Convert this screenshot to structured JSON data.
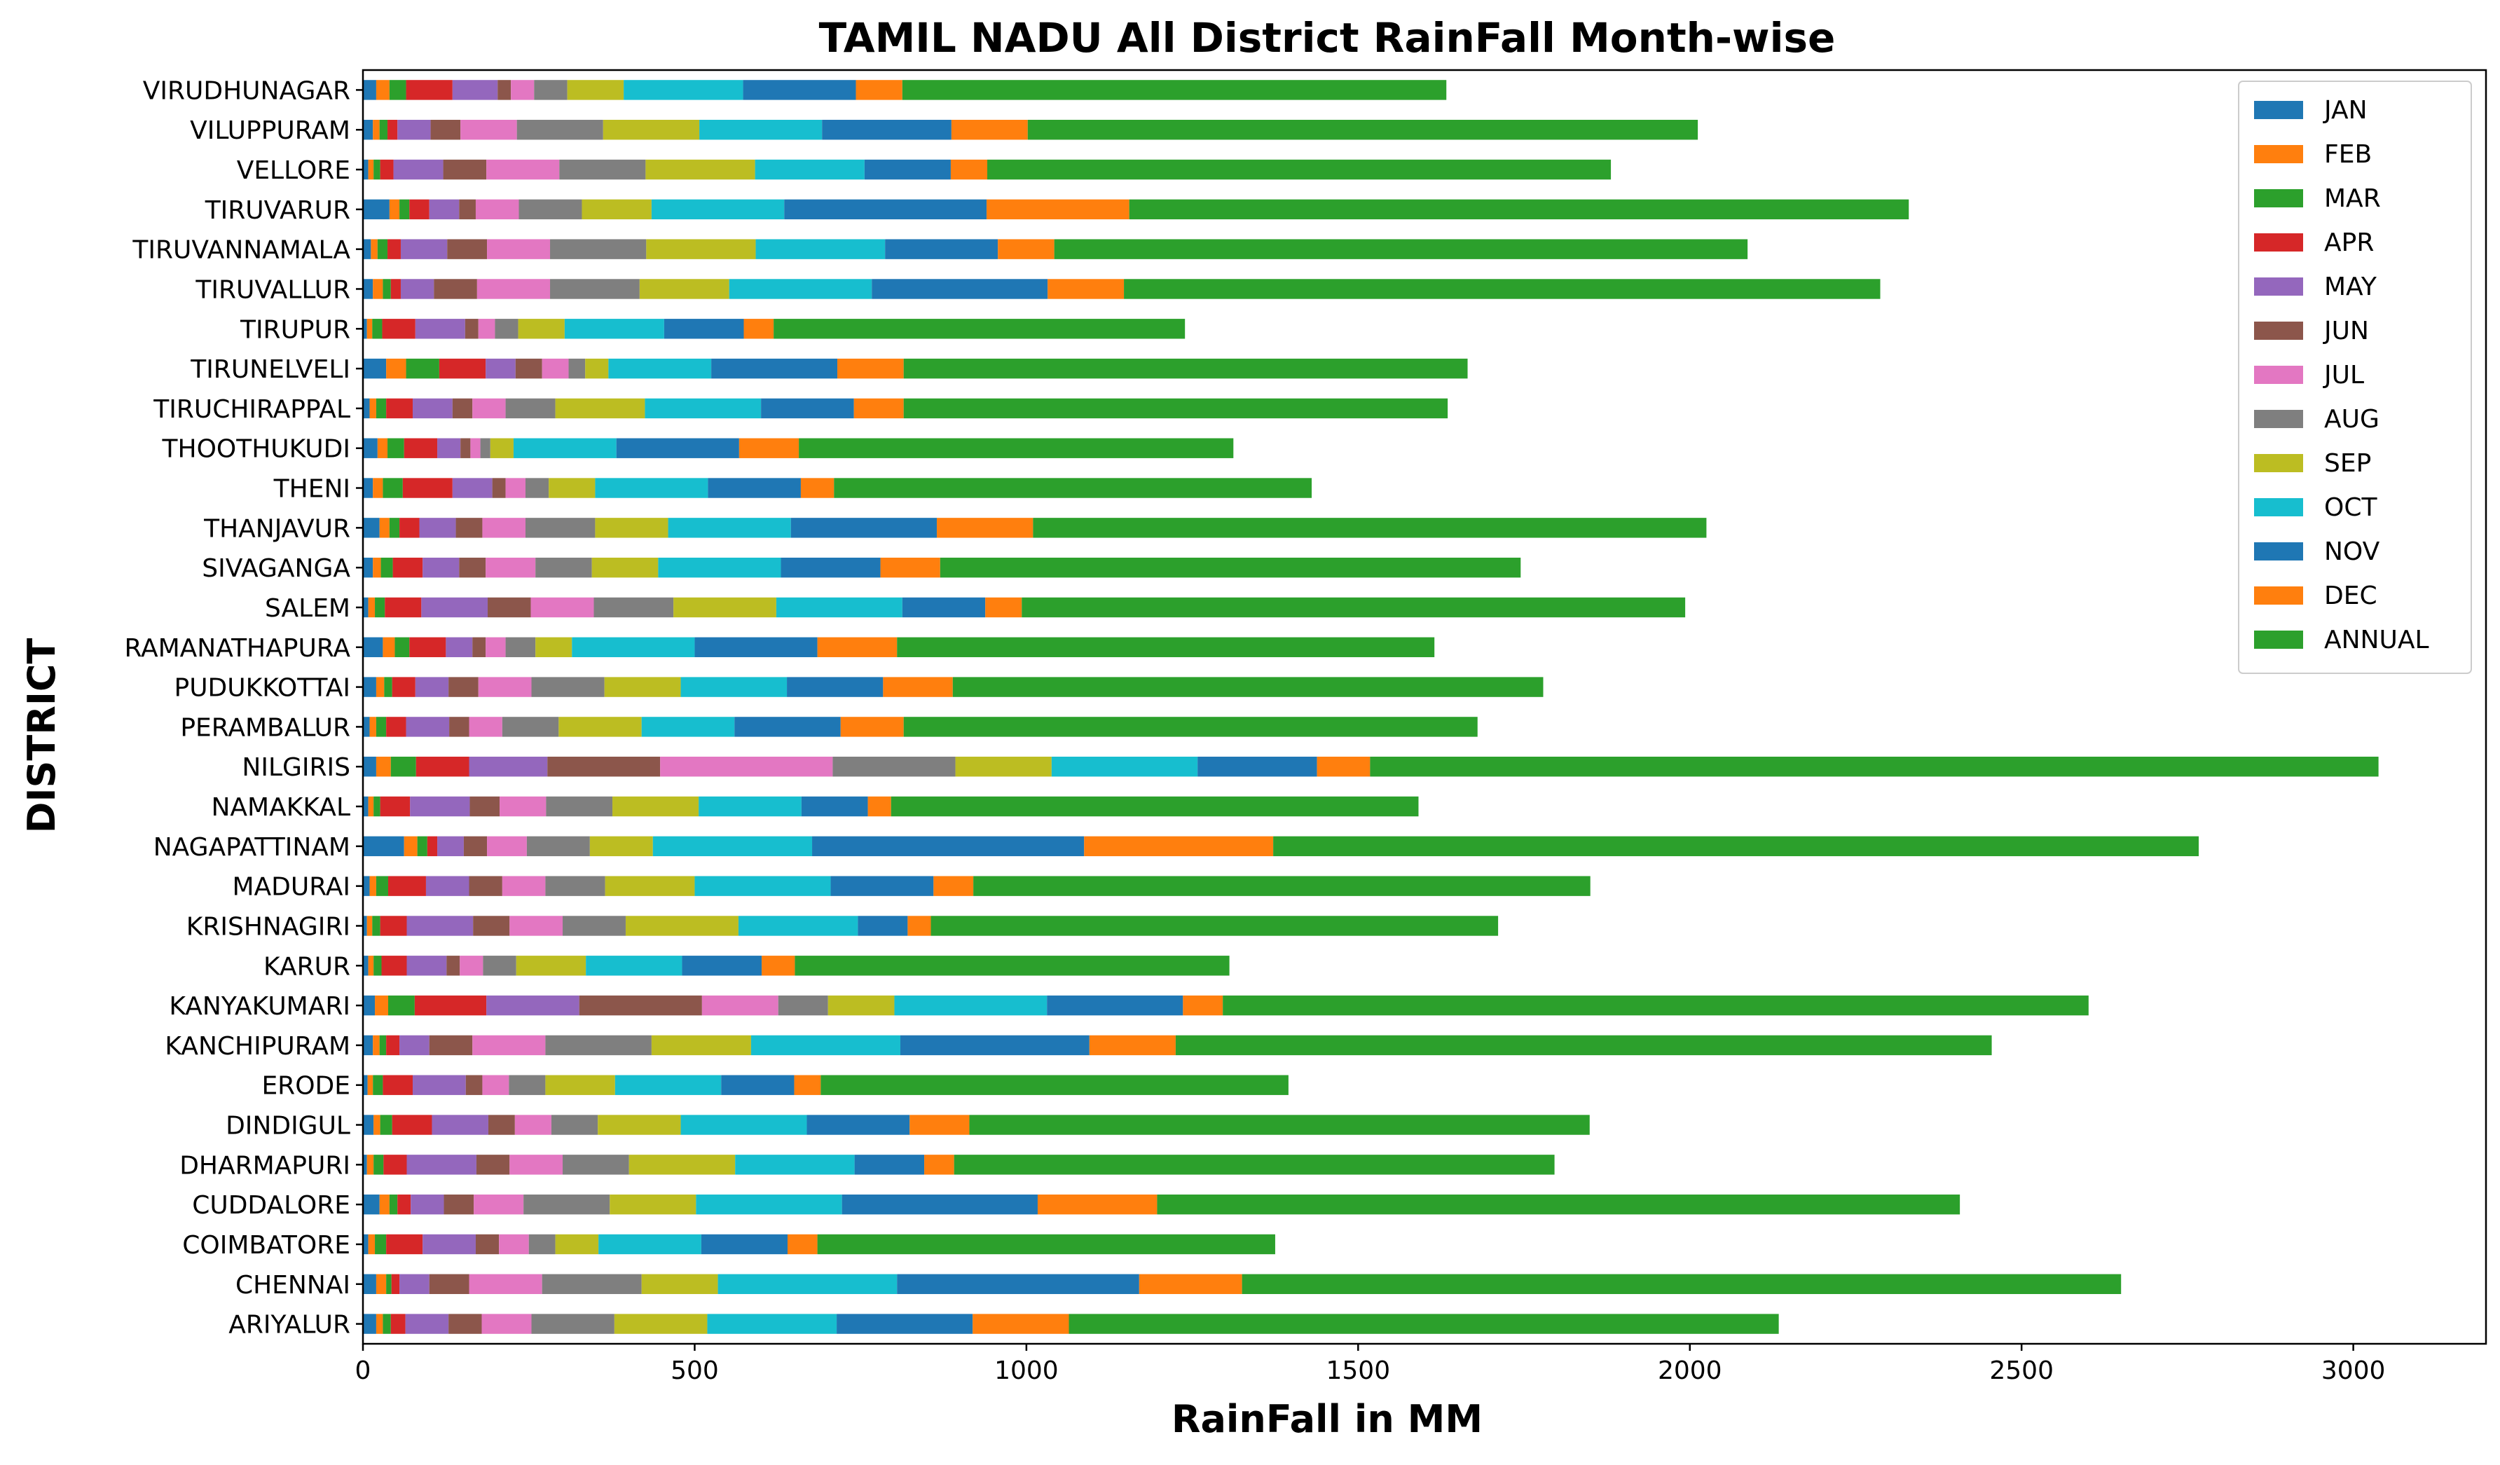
{
  "chart_data": {
    "type": "bar",
    "orientation": "horizontal",
    "stacked": true,
    "title": "TAMIL NADU All District RainFall Month-wise",
    "xlabel": "RainFall in MM",
    "ylabel": "DISTRICT",
    "xlim": [
      0,
      3200
    ],
    "xticks": [
      0,
      500,
      1000,
      1500,
      2000,
      2500,
      3000
    ],
    "grid": false,
    "legend_position": "top-right",
    "colors": [
      "#1f77b4",
      "#ff7f0e",
      "#2ca02c",
      "#d62728",
      "#9467bd",
      "#8c564b",
      "#e377c2",
      "#7f7f7f",
      "#bcbd22",
      "#17becf",
      "#1f77b4",
      "#ff7f0e",
      "#2ca02c"
    ],
    "categories": [
      "ARIYALUR",
      "CHENNAI",
      "COIMBATORE",
      "CUDDALORE",
      "DHARMAPURI",
      "DINDIGUL",
      "ERODE",
      "KANCHIPURAM",
      "KANYAKUMARI",
      "KARUR",
      "KRISHNAGIRI",
      "MADURAI",
      "NAGAPATTINAM",
      "NAMAKKAL",
      "NILGIRIS",
      "PERAMBALUR",
      "PUDUKKOTTAI",
      "RAMANATHAPURA",
      "SALEM",
      "SIVAGANGA",
      "THANJAVUR",
      "THENI",
      "THOOTHUKUDI",
      "TIRUCHIRAPPAL",
      "TIRUNELVELI",
      "TIRUPUR",
      "TIRUVALLUR",
      "TIRUVANNAMALA",
      "TIRUVARUR",
      "VELLORE",
      "VILUPPURAM",
      "VIRUDHUNAGAR"
    ],
    "series": [
      {
        "name": "JAN",
        "values": [
          20,
          20,
          8,
          25,
          6,
          16,
          7,
          15,
          18,
          8,
          6,
          10,
          62,
          8,
          20,
          10,
          20,
          30,
          8,
          15,
          25,
          15,
          22,
          10,
          35,
          6,
          15,
          12,
          40,
          8,
          15,
          20
        ]
      },
      {
        "name": "FEB",
        "values": [
          10,
          15,
          10,
          15,
          10,
          10,
          8,
          10,
          20,
          8,
          8,
          10,
          20,
          8,
          22,
          10,
          12,
          18,
          10,
          12,
          15,
          15,
          15,
          10,
          30,
          8,
          15,
          10,
          15,
          8,
          10,
          20
        ]
      },
      {
        "name": "MAR",
        "values": [
          12,
          8,
          17,
          12,
          15,
          18,
          15,
          10,
          40,
          12,
          12,
          18,
          15,
          10,
          38,
          15,
          12,
          22,
          15,
          18,
          15,
          30,
          25,
          15,
          50,
          15,
          12,
          15,
          15,
          10,
          12,
          25
        ]
      },
      {
        "name": "APR",
        "values": [
          22,
          12,
          55,
          20,
          35,
          60,
          45,
          20,
          108,
          38,
          40,
          57,
          15,
          45,
          80,
          30,
          35,
          55,
          55,
          45,
          30,
          75,
          50,
          40,
          70,
          50,
          15,
          20,
          30,
          20,
          15,
          70
        ]
      },
      {
        "name": "MAY",
        "values": [
          65,
          45,
          80,
          50,
          105,
          85,
          80,
          45,
          140,
          60,
          100,
          65,
          40,
          90,
          118,
          65,
          50,
          40,
          100,
          55,
          55,
          60,
          35,
          60,
          45,
          75,
          50,
          70,
          45,
          75,
          50,
          68
        ]
      },
      {
        "name": "JUN",
        "values": [
          50,
          60,
          35,
          45,
          50,
          40,
          25,
          65,
          185,
          20,
          55,
          50,
          35,
          45,
          170,
          30,
          45,
          20,
          65,
          40,
          40,
          20,
          15,
          30,
          40,
          20,
          65,
          60,
          25,
          65,
          45,
          20
        ]
      },
      {
        "name": "JUL",
        "values": [
          75,
          110,
          45,
          75,
          80,
          55,
          40,
          110,
          115,
          35,
          80,
          65,
          60,
          70,
          260,
          50,
          80,
          30,
          95,
          75,
          65,
          30,
          15,
          50,
          40,
          25,
          110,
          95,
          65,
          110,
          85,
          35
        ]
      },
      {
        "name": "AUG",
        "values": [
          125,
          150,
          40,
          130,
          100,
          70,
          55,
          160,
          75,
          50,
          95,
          90,
          95,
          100,
          185,
          85,
          110,
          45,
          120,
          85,
          105,
          35,
          15,
          75,
          25,
          35,
          135,
          145,
          95,
          130,
          130,
          50
        ]
      },
      {
        "name": "SEP",
        "values": [
          140,
          115,
          65,
          130,
          160,
          125,
          105,
          150,
          100,
          105,
          170,
          135,
          95,
          130,
          145,
          125,
          115,
          55,
          155,
          100,
          110,
          70,
          35,
          135,
          35,
          70,
          135,
          165,
          105,
          165,
          145,
          85
        ]
      },
      {
        "name": "OCT",
        "values": [
          195,
          270,
          155,
          220,
          180,
          190,
          160,
          225,
          230,
          145,
          180,
          205,
          240,
          155,
          220,
          140,
          160,
          185,
          190,
          185,
          185,
          170,
          155,
          175,
          155,
          150,
          215,
          195,
          200,
          165,
          185,
          180
        ]
      },
      {
        "name": "NOV",
        "values": [
          205,
          365,
          130,
          295,
          105,
          155,
          110,
          285,
          205,
          120,
          75,
          155,
          410,
          100,
          180,
          160,
          145,
          185,
          125,
          150,
          220,
          140,
          185,
          140,
          190,
          120,
          265,
          170,
          305,
          130,
          195,
          170
        ]
      },
      {
        "name": "DEC",
        "values": [
          145,
          155,
          45,
          180,
          45,
          90,
          40,
          130,
          60,
          50,
          35,
          60,
          285,
          35,
          80,
          95,
          105,
          120,
          55,
          90,
          145,
          50,
          90,
          75,
          100,
          45,
          115,
          85,
          215,
          55,
          115,
          70
        ]
      },
      {
        "name": "ANNUAL",
        "values": [
          1070,
          1325,
          690,
          1210,
          905,
          935,
          705,
          1230,
          1305,
          655,
          855,
          930,
          1395,
          795,
          1520,
          865,
          890,
          810,
          1000,
          875,
          1015,
          720,
          655,
          820,
          850,
          620,
          1140,
          1045,
          1175,
          940,
          1010,
          820
        ]
      }
    ]
  }
}
